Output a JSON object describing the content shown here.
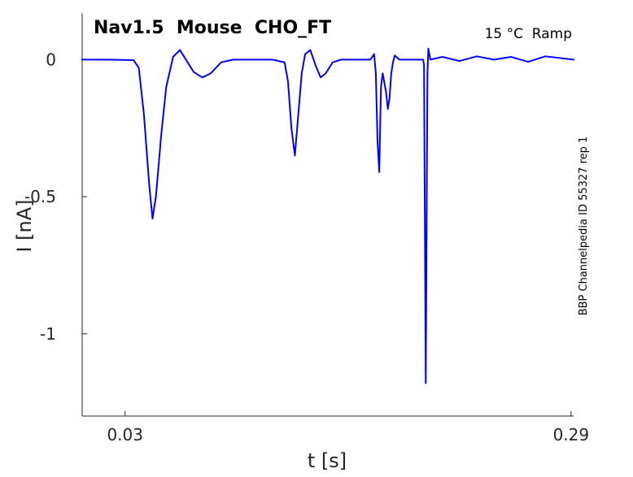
{
  "chart_data": {
    "type": "line",
    "title": "Nav1.5  Mouse  CHO_FT",
    "subtitle": "15 °C  Ramp",
    "side_note": "BBP Channelpedia ID 55327 rep 1",
    "xlabel": "t [s]",
    "ylabel": "I [nA]",
    "xlim": [
      0.005,
      0.2915
    ],
    "ylim": [
      -1.3,
      0.17
    ],
    "xticks": [
      0.03,
      0.29
    ],
    "xtick_labels": [
      "0.03",
      "0.29"
    ],
    "yticks": [
      0,
      -0.5,
      -1
    ],
    "ytick_labels": [
      "0",
      "-0.5",
      "-1"
    ],
    "grid": false,
    "colors": {
      "line": "#0000ff",
      "axis": "#262626"
    },
    "series": [
      {
        "x": [
          0.005,
          0.02,
          0.035,
          0.038,
          0.041,
          0.044,
          0.046,
          0.048,
          0.051,
          0.054,
          0.058,
          0.062,
          0.066,
          0.07,
          0.075,
          0.08,
          0.086,
          0.093,
          0.1,
          0.108,
          0.116,
          0.123,
          0.125,
          0.127,
          0.129,
          0.131,
          0.133,
          0.135,
          0.138,
          0.141,
          0.144,
          0.147,
          0.151,
          0.156,
          0.162,
          0.168,
          0.173,
          0.1752,
          0.1762,
          0.1772,
          0.1782,
          0.1792,
          0.1802,
          0.1822,
          0.1832,
          0.1842,
          0.1852,
          0.1862,
          0.1872,
          0.19,
          0.195,
          0.2,
          0.2038,
          0.2043,
          0.2048,
          0.2053,
          0.2058,
          0.2063,
          0.2068,
          0.208,
          0.215,
          0.225,
          0.235,
          0.245,
          0.255,
          0.265,
          0.275,
          0.2915
        ],
        "y": [
          0,
          0,
          -0.002,
          -0.03,
          -0.2,
          -0.45,
          -0.58,
          -0.5,
          -0.28,
          -0.1,
          0.01,
          0.035,
          -0.005,
          -0.045,
          -0.065,
          -0.05,
          -0.01,
          0,
          0,
          0,
          0,
          -0.01,
          -0.08,
          -0.25,
          -0.35,
          -0.2,
          -0.05,
          0.02,
          0.035,
          -0.02,
          -0.065,
          -0.05,
          -0.01,
          0,
          0,
          0,
          0,
          0.02,
          -0.05,
          -0.3,
          -0.41,
          -0.1,
          -0.05,
          -0.12,
          -0.18,
          -0.14,
          -0.05,
          -0.01,
          0.015,
          0,
          0,
          0,
          0,
          -0.02,
          -0.6,
          -1.18,
          -0.6,
          -0.05,
          0.04,
          0,
          0.01,
          -0.005,
          0.012,
          0,
          0.01,
          -0.008,
          0.012,
          0
        ]
      }
    ]
  }
}
